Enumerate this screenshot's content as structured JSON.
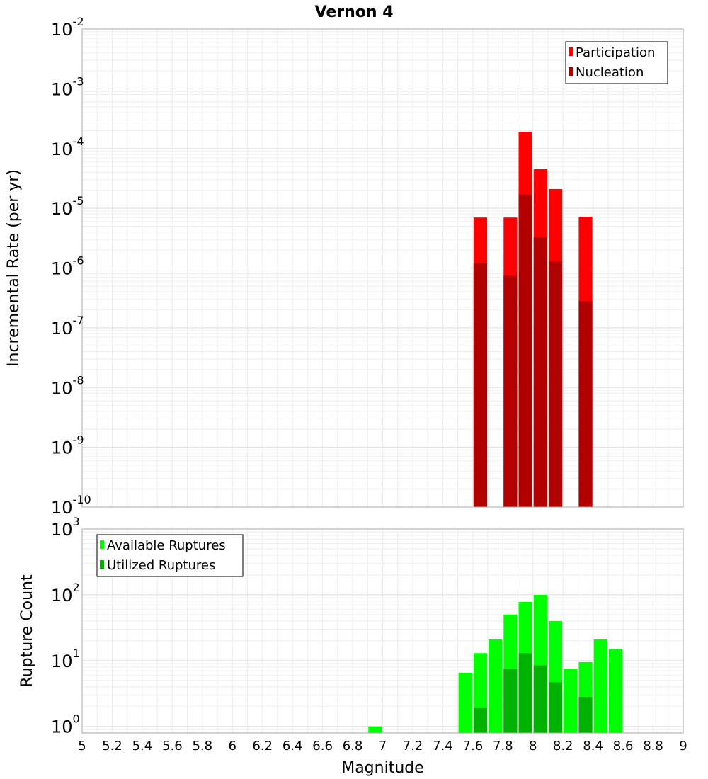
{
  "chart_data": [
    {
      "type": "bar",
      "title": "Vernon 4",
      "xlabel": "",
      "ylabel": "Incremental Rate (per yr)",
      "yscale": "log",
      "ylim_exp": [
        -10,
        -2
      ],
      "ytick_exponents": [
        "-10",
        "-9",
        "-8",
        "-7",
        "-6",
        "-5",
        "-4",
        "-3",
        "-2"
      ],
      "ytick_base": "10",
      "xlim": [
        5,
        9
      ],
      "bin_width": 0.1,
      "legend_position": "top-right",
      "series": [
        {
          "name": "Participation",
          "color": "#ff0000",
          "x": [
            7.65,
            7.85,
            7.95,
            8.05,
            8.15,
            8.35
          ],
          "values": [
            7e-06,
            7e-06,
            0.00019,
            4.5e-05,
            2.1e-05,
            7.2e-06
          ]
        },
        {
          "name": "Nucleation",
          "color": "#b20000",
          "x": [
            7.65,
            7.85,
            7.95,
            8.05,
            8.15,
            8.35
          ],
          "values": [
            1.2e-06,
            7.5e-07,
            1.7e-05,
            3.3e-06,
            1.3e-06,
            2.8e-07
          ]
        }
      ]
    },
    {
      "type": "bar",
      "title": "",
      "xlabel": "Magnitude",
      "ylabel": "Rupture Count",
      "yscale": "log",
      "ylim_exp": [
        -0.1,
        3
      ],
      "ytick_exponents": [
        "0",
        "1",
        "2",
        "3"
      ],
      "ytick_base": "10",
      "xlim": [
        5,
        9
      ],
      "xticks": [
        "5",
        "5.2",
        "5.4",
        "5.6",
        "5.8",
        "6",
        "6.2",
        "6.4",
        "6.6",
        "6.8",
        "7",
        "7.2",
        "7.4",
        "7.6",
        "7.8",
        "8",
        "8.2",
        "8.4",
        "8.6",
        "8.8",
        "9"
      ],
      "bin_width": 0.1,
      "legend_position": "top-left",
      "series": [
        {
          "name": "Available Ruptures",
          "color": "#00ff00",
          "x": [
            6.95,
            7.55,
            7.65,
            7.75,
            7.85,
            7.95,
            8.05,
            8.15,
            8.25,
            8.35,
            8.45,
            8.55
          ],
          "values": [
            1,
            6.5,
            13,
            21,
            50,
            78,
            100,
            40,
            7.5,
            9.5,
            21,
            15
          ]
        },
        {
          "name": "Utilized Ruptures",
          "color": "#00b200",
          "x": [
            7.65,
            7.85,
            7.95,
            8.05,
            8.15,
            8.35
          ],
          "values": [
            1.9,
            7.5,
            13,
            8.5,
            4.7,
            2.8
          ]
        }
      ]
    }
  ]
}
